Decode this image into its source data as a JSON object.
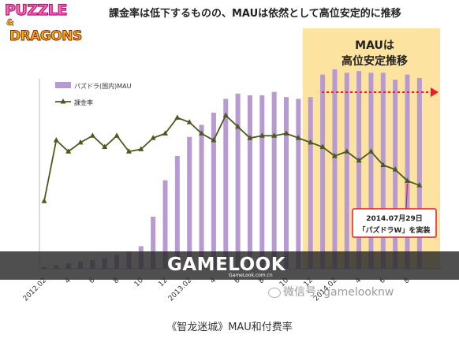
{
  "logo": {
    "line1": "PUZZLE",
    "line2": "&",
    "line3": "DRAGONS"
  },
  "headline": "課金率は低下するものの、MAUは依然として高位安定的に推移",
  "highlight_box": {
    "line1": "MAUは",
    "line2": "高位安定推移"
  },
  "callout": {
    "line1": "2014.07月29日",
    "line2": "「パズドラW」を実装"
  },
  "watermark": {
    "main": "GAMELOOK",
    "sub": "GameLook.com.cn",
    "wechat": "微信号: gamelooknw"
  },
  "caption": "《智龙迷城》MAU和付费率",
  "colors": {
    "bar": "#b79ad1",
    "line": "#4a5a1e",
    "highlight": "#fde3a0",
    "arrow": "#e0202a"
  },
  "chart_data": {
    "type": "bar+line",
    "legend": [
      "パズドラ(国内)MAU",
      "課金率"
    ],
    "legend_placement": "top-left",
    "x_labels": [
      "2012.02",
      "4",
      "6",
      "8",
      "10",
      "12",
      "2013.02",
      "4",
      "6",
      "8",
      "10",
      "12",
      "2014.02",
      "4",
      "6",
      "8"
    ],
    "series": [
      {
        "name": "パズドラ(国内)MAU",
        "kind": "bar",
        "values": [
          1,
          2,
          3,
          4,
          5,
          6,
          8,
          10,
          13,
          30,
          51,
          65,
          76,
          83,
          90,
          98,
          101,
          100,
          100,
          102,
          99,
          98,
          99,
          112,
          115,
          113,
          114,
          113,
          113,
          109,
          112,
          110
        ]
      },
      {
        "name": "課金率",
        "kind": "line",
        "values": [
          30,
          57,
          52,
          56,
          59,
          54,
          59,
          52,
          53,
          58,
          60,
          67,
          65,
          60,
          57,
          68,
          63,
          58,
          59,
          59,
          60,
          58,
          56,
          54,
          50,
          52,
          48,
          52,
          46,
          44,
          39,
          37
        ]
      }
    ],
    "ylim_bar": [
      0,
      130
    ],
    "ylim_line": [
      0,
      100
    ],
    "highlight_from_index": 22,
    "callout_index": 30,
    "grid": false
  }
}
